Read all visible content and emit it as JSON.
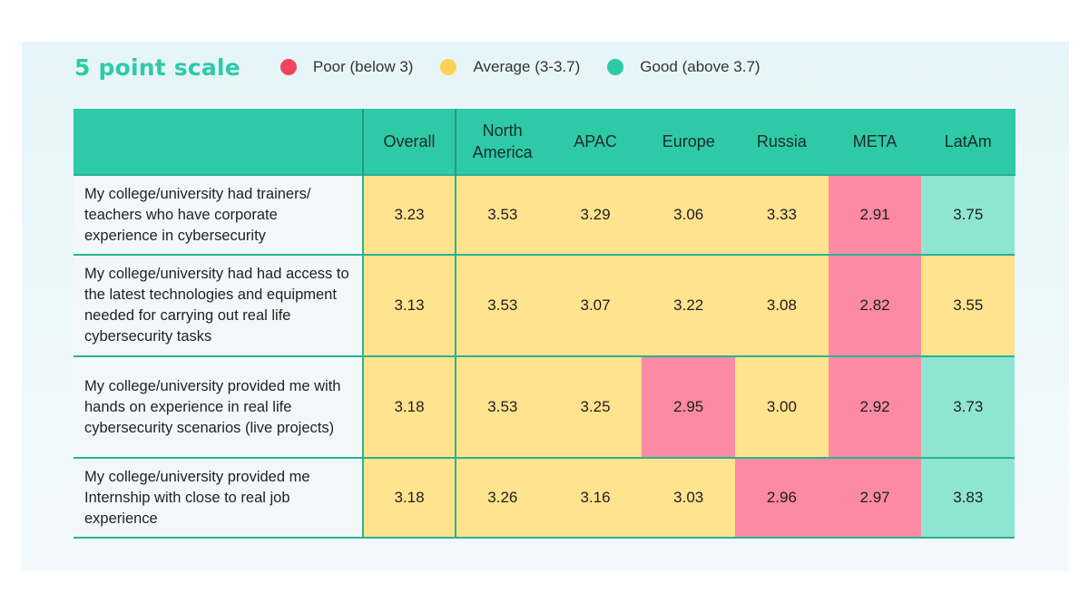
{
  "legend": {
    "title": "5 point scale",
    "items": [
      {
        "label": "Poor (below 3)",
        "color": "#f2455d"
      },
      {
        "label": "Average (3-3.7)",
        "color": "#fcd452"
      },
      {
        "label": "Good (above 3.7)",
        "color": "#2ecaa7"
      }
    ]
  },
  "chart_data": {
    "type": "table",
    "columns": [
      "",
      "Overall",
      "North America",
      "APAC",
      "Europe",
      "Russia",
      "META",
      "LatAm"
    ],
    "rows": [
      {
        "label": "My college/university had trainers/ teachers who have corporate experience in cybersecurity",
        "values": [
          "3.23",
          "3.53",
          "3.29",
          "3.06",
          "3.33",
          "2.91",
          "3.75"
        ]
      },
      {
        "label": "My college/university had had access to the latest technologies and equipment needed for carrying out real life cybersecurity tasks",
        "values": [
          "3.13",
          "3.53",
          "3.07",
          "3.22",
          "3.08",
          "2.82",
          "3.55"
        ]
      },
      {
        "label": "My college/university provided me with hands on experience in real life cybersecurity scenarios (live projects)",
        "values": [
          "3.18",
          "3.53",
          "3.25",
          "2.95",
          "3.00",
          "2.92",
          "3.73"
        ]
      },
      {
        "label": "My college/university provided me Internship with close to real job experience",
        "values": [
          "3.18",
          "3.26",
          "3.16",
          "3.03",
          "2.96",
          "2.97",
          "3.83"
        ]
      }
    ],
    "scale": {
      "poor_below": 3,
      "good_above": 3.7,
      "colors": {
        "poor": "#fc8aa2",
        "average": "#ffe38f",
        "good": "#8ee6d2"
      }
    }
  }
}
